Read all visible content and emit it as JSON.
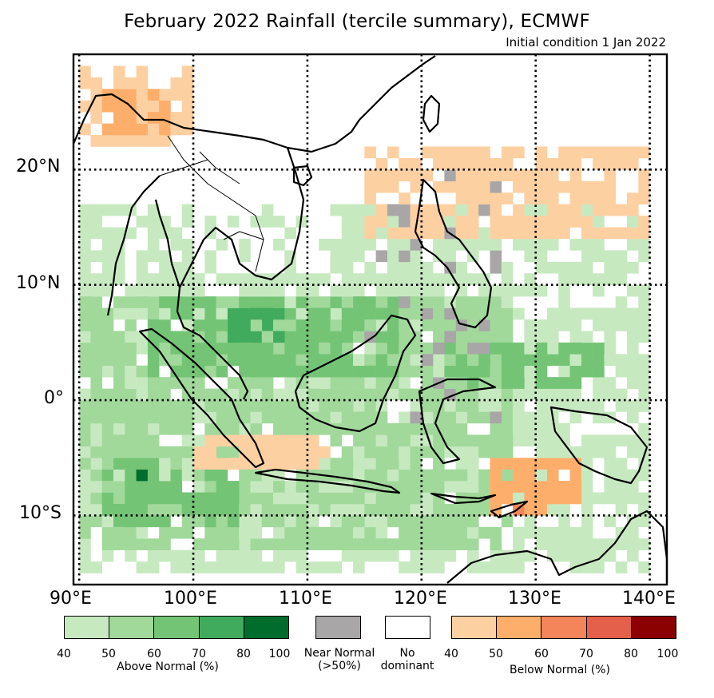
{
  "title": "February 2022 Rainfall (tercile summary), ECMWF",
  "subtitle": "Initial condition 1 Jan 2022",
  "axes": {
    "lon_labels": [
      "90°E",
      "100°E",
      "110°E",
      "120°E",
      "130°E",
      "140°E"
    ],
    "lat_labels": [
      "20°N",
      "10°N",
      "0°",
      "10°S"
    ]
  },
  "legend": {
    "above": {
      "label": "Above Normal (%)",
      "ticks": [
        "40",
        "50",
        "60",
        "70",
        "80",
        "100"
      ],
      "colors": [
        "#c7e9c0",
        "#a1d99b",
        "#74c476",
        "#41ab5d",
        "#006d2c"
      ]
    },
    "near": {
      "label_line1": "Near Normal",
      "label_line2": "(>50%)",
      "color": "#a8a6a6"
    },
    "none": {
      "label_line1": "No",
      "label_line2": "dominant",
      "color": "#ffffff"
    },
    "below": {
      "label": "Below Normal (%)",
      "ticks": [
        "40",
        "50",
        "60",
        "70",
        "80",
        "100"
      ],
      "colors": [
        "#fdd0a2",
        "#fdae6b",
        "#f4845a",
        "#e5604a",
        "#8b0000"
      ]
    }
  },
  "chart_data": {
    "type": "heatmap",
    "title": "February 2022 Rainfall (tercile summary), ECMWF",
    "subtitle": "Initial condition 1 Jan 2022",
    "xlim": [
      89.5,
      141.5
    ],
    "ylim": [
      -16,
      30
    ],
    "gridlines_lon": [
      90,
      100,
      110,
      120,
      130,
      140
    ],
    "gridlines_lat": [
      20,
      10,
      0,
      -10
    ],
    "regions": [
      {
        "category": "below",
        "level": 1,
        "lon": [
          90,
          100
        ],
        "lat": [
          22,
          29
        ]
      },
      {
        "category": "below",
        "level": 2,
        "lon": [
          92,
          98
        ],
        "lat": [
          23,
          27
        ]
      },
      {
        "category": "above",
        "level": 1,
        "lon": [
          90,
          140
        ],
        "lat": [
          -15,
          17
        ]
      },
      {
        "category": "above",
        "level": 2,
        "lon": [
          90,
          128
        ],
        "lat": [
          -13,
          9
        ]
      },
      {
        "category": "above",
        "level": 3,
        "lon": [
          96,
          118
        ],
        "lat": [
          2,
          9
        ]
      },
      {
        "category": "above",
        "level": 4,
        "lon": [
          103,
          108
        ],
        "lat": [
          5,
          8
        ]
      },
      {
        "category": "above",
        "level": 3,
        "lon": [
          92,
          104
        ],
        "lat": [
          -11,
          -5
        ]
      },
      {
        "category": "above",
        "level": 5,
        "lon": [
          95,
          97
        ],
        "lat": [
          -7,
          -6
        ]
      },
      {
        "category": "above",
        "level": 3,
        "lon": [
          122,
          136
        ],
        "lat": [
          1,
          5
        ]
      },
      {
        "category": "below",
        "level": 1,
        "lon": [
          115,
          140
        ],
        "lat": [
          14,
          22
        ]
      },
      {
        "category": "below",
        "level": 1,
        "lon": [
          100,
          112
        ],
        "lat": [
          -6,
          -3
        ]
      },
      {
        "category": "below",
        "level": 2,
        "lon": [
          126,
          134
        ],
        "lat": [
          -10,
          -5
        ]
      },
      {
        "category": "below",
        "level": 3,
        "lon": [
          128,
          132
        ],
        "lat": [
          -10,
          -9
        ]
      },
      {
        "category": "near",
        "level": 1,
        "lon": [
          115,
          127
        ],
        "lat": [
          -2,
          20
        ]
      },
      {
        "category": "none",
        "level": 0,
        "lon": [
          100,
          112
        ],
        "lat": [
          11,
          23
        ]
      }
    ]
  }
}
